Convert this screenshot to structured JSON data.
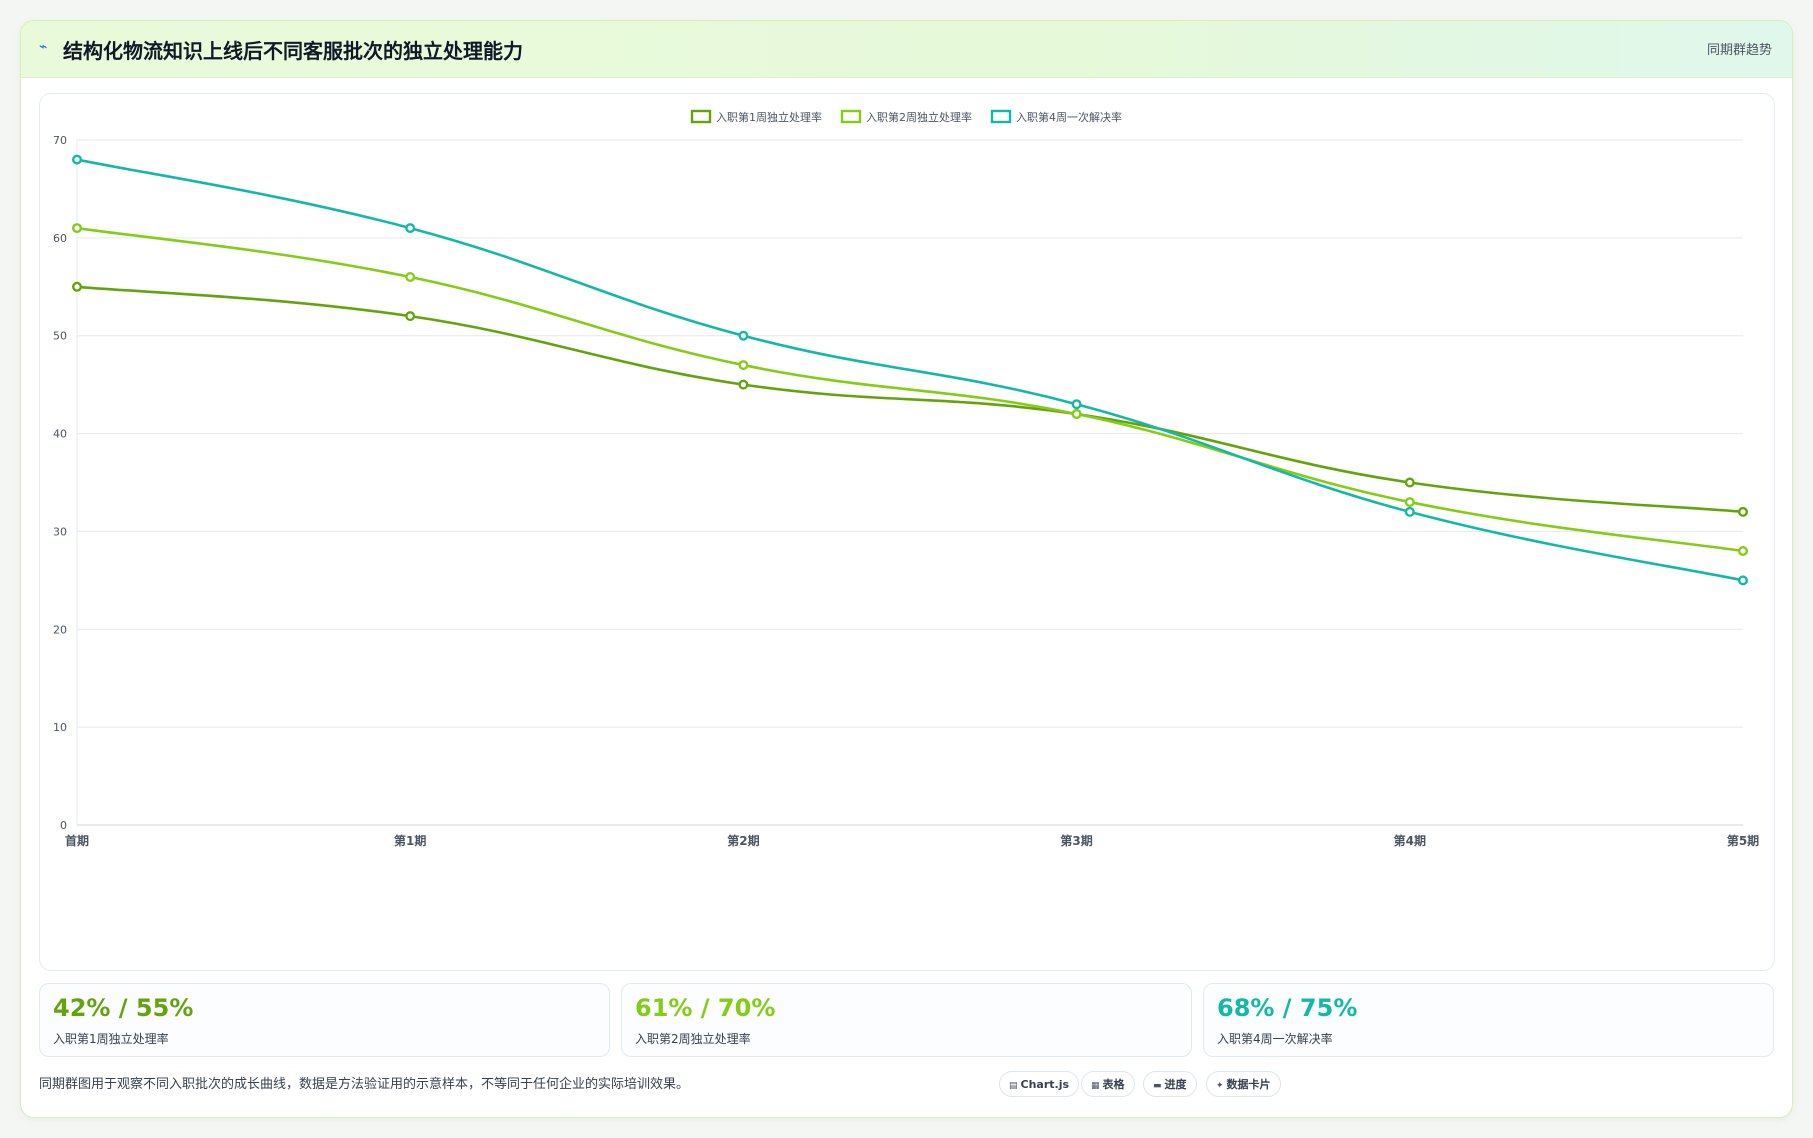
{
  "header": {
    "icon": "lightning-icon",
    "title": "结构化物流知识上线后不同客服批次的独立处理能力",
    "tag": "同期群趋势"
  },
  "chart_data": {
    "type": "line",
    "categories": [
      "首期",
      "第1期",
      "第2期",
      "第3期",
      "第4期",
      "第5期"
    ],
    "series": [
      {
        "name": "入职第1周独立处理率",
        "color": "#65a30d",
        "values": [
          55,
          52,
          45,
          42,
          35,
          32
        ]
      },
      {
        "name": "入职第2周独立处理率",
        "color": "#84cc16",
        "values": [
          61,
          56,
          47,
          42,
          33,
          28
        ]
      },
      {
        "name": "入职第4周一次解决率",
        "color": "#14b8a6",
        "values": [
          68,
          61,
          50,
          43,
          32,
          25
        ]
      }
    ],
    "ylim": [
      0,
      70
    ],
    "yticks": [
      0,
      10,
      20,
      30,
      40,
      50,
      60,
      70
    ],
    "grid": true,
    "legend": "top-center",
    "smooth": true
  },
  "stats": [
    {
      "value": "42% / 55%",
      "label": "入职第1周独立处理率",
      "color": "#65a30d"
    },
    {
      "value": "61% / 70%",
      "label": "入职第2周独立处理率",
      "color": "#84cc16"
    },
    {
      "value": "68% / 75%",
      "label": "入职第4周一次解决率",
      "color": "#14b8a6"
    }
  ],
  "note": "同期群图用于观察不同入职批次的成长曲线，数据是方法验证用的示意样本，不等同于任何企业的实际培训效果。",
  "view_buttons": [
    {
      "icon": "chart-icon",
      "label": "Chart.js"
    },
    {
      "icon": "table-icon",
      "label": "表格"
    },
    {
      "icon": "progress-icon",
      "label": "进度"
    },
    {
      "icon": "sparkle-icon",
      "label": "数据卡片"
    }
  ]
}
